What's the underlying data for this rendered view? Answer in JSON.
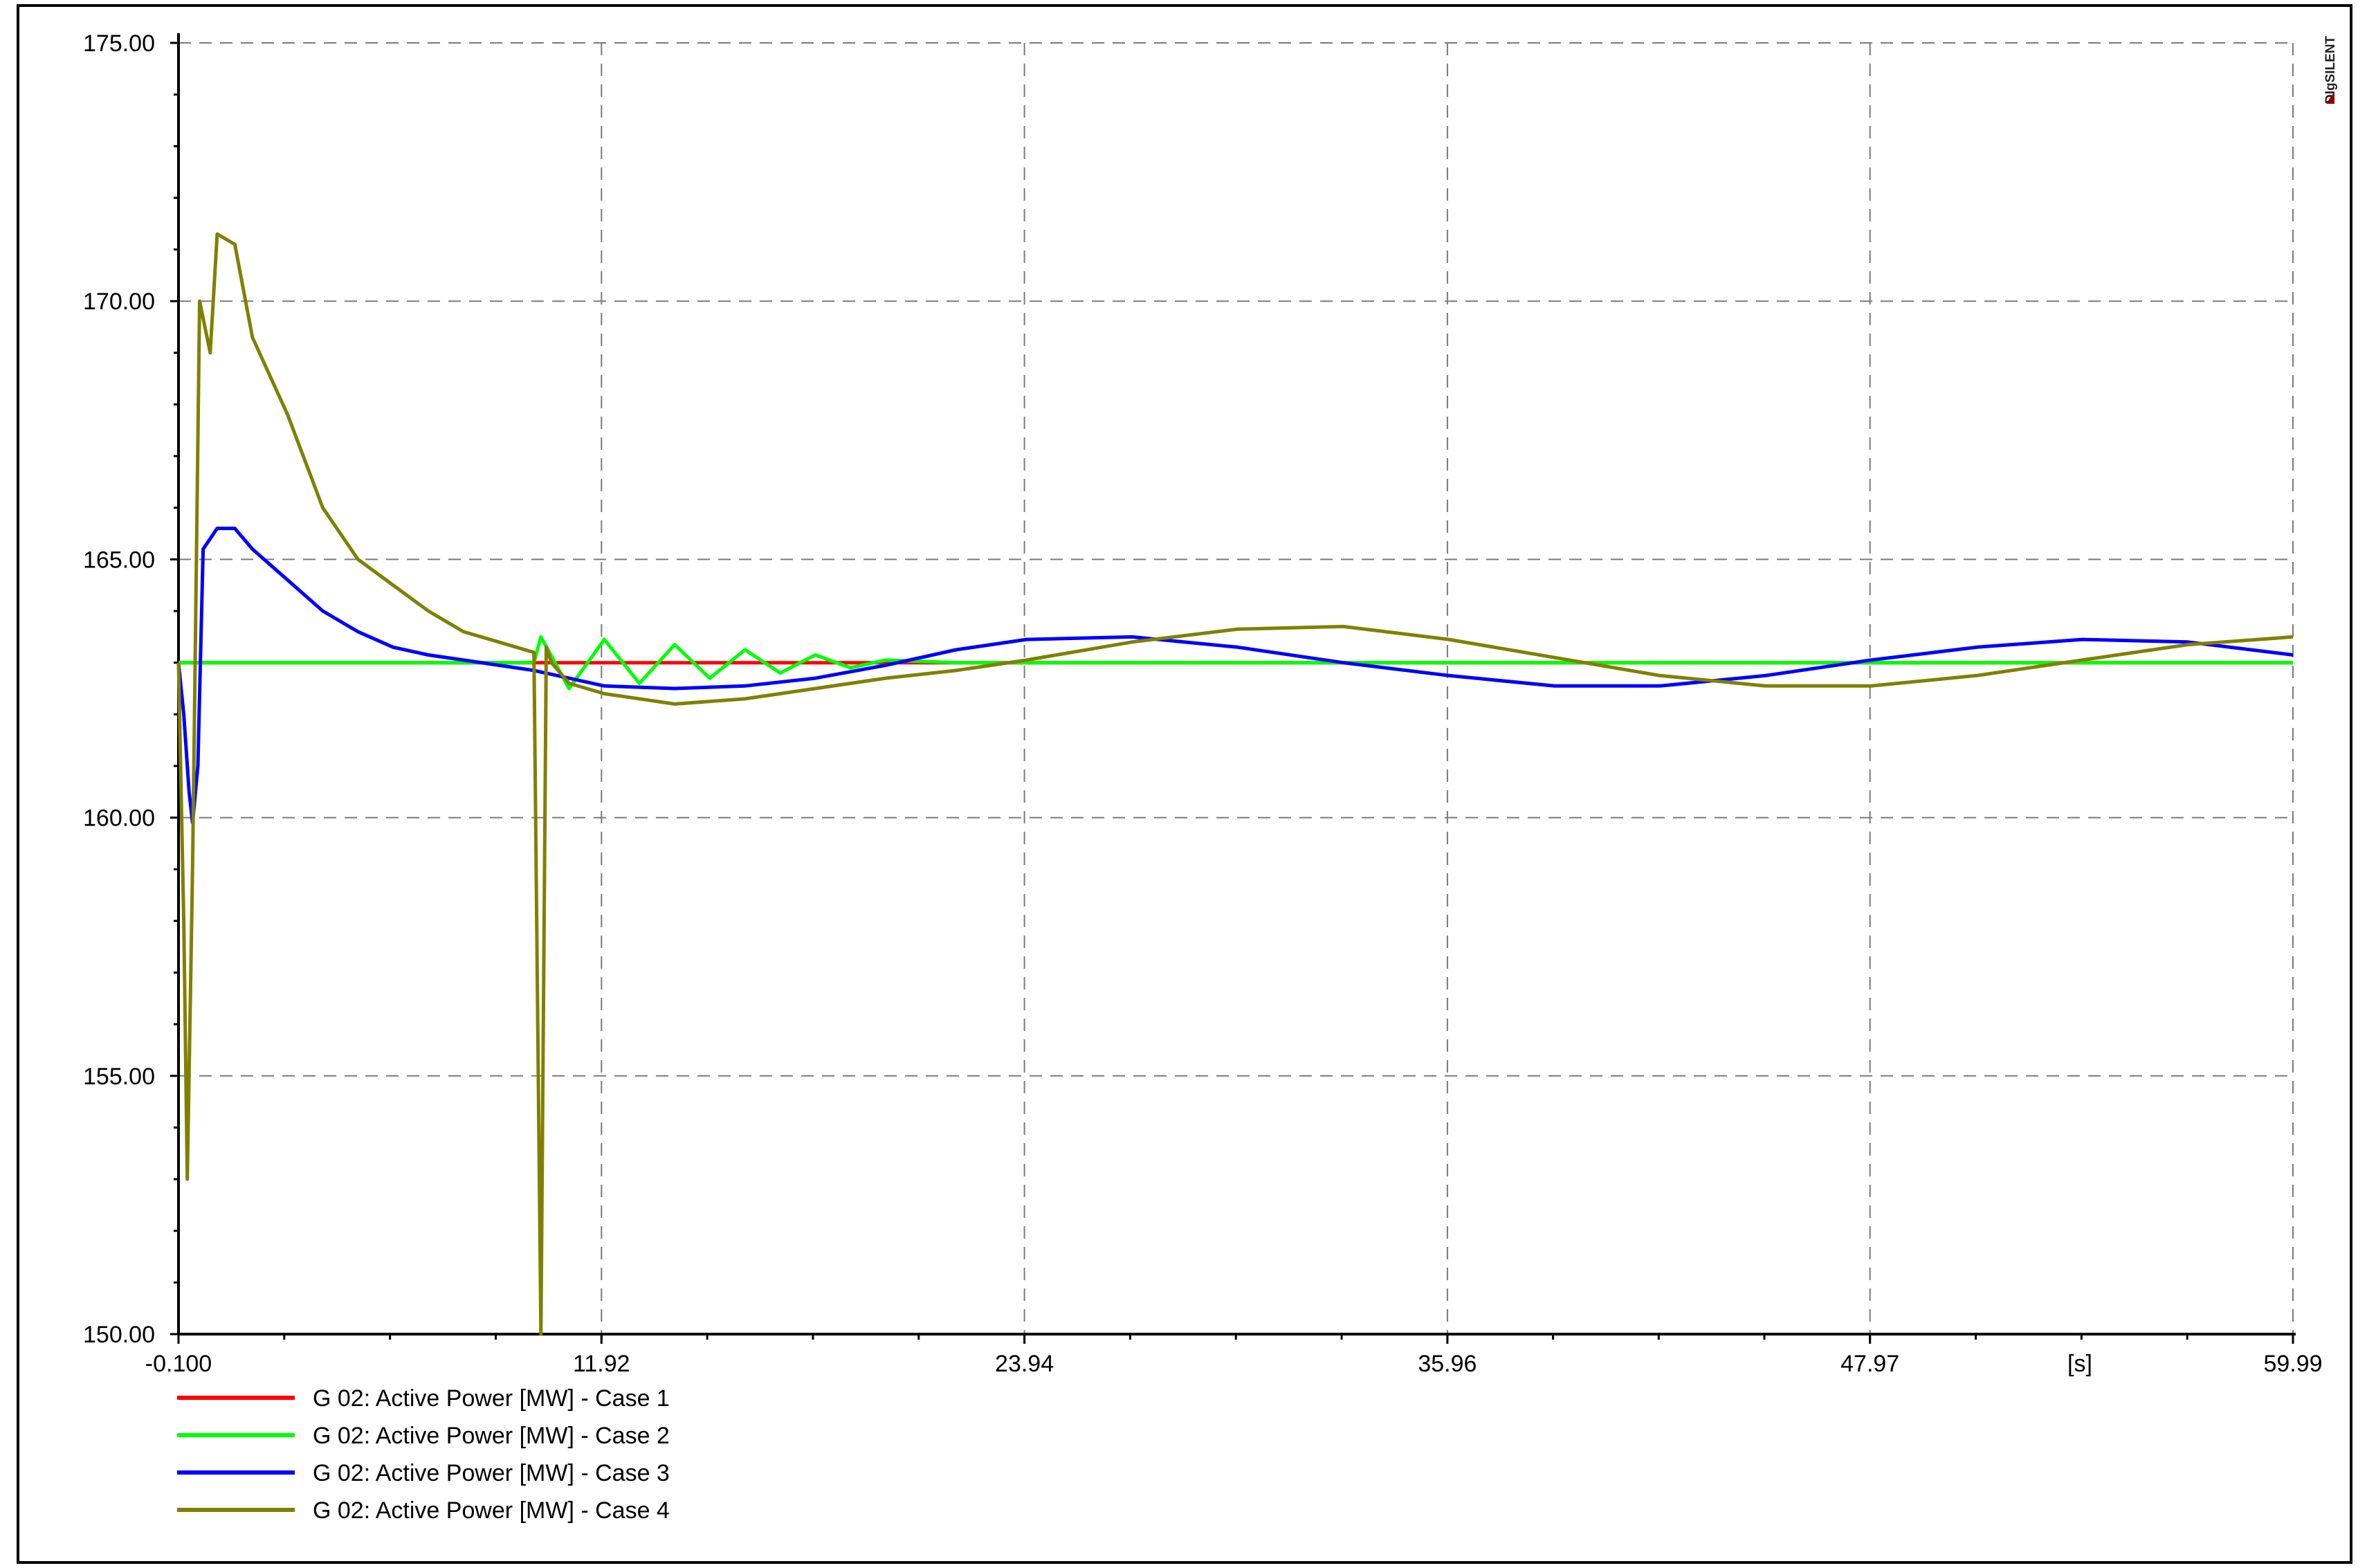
{
  "watermark": "DIgSILENT",
  "chart_data": {
    "type": "line",
    "title": "",
    "xlabel": "",
    "ylabel": "",
    "x_unit_label": "[s]",
    "xlim": [
      -0.1,
      59.99
    ],
    "ylim": [
      150.0,
      175.0
    ],
    "x_tick_labels": [
      "-0.100",
      "11.92",
      "23.94",
      "35.96",
      "47.97",
      "59.99"
    ],
    "x_tick_values": [
      -0.1,
      11.92,
      23.94,
      35.96,
      47.97,
      59.99
    ],
    "y_tick_labels": [
      "150.00",
      "155.00",
      "160.00",
      "165.00",
      "170.00",
      "175.00"
    ],
    "y_tick_values": [
      150,
      155,
      160,
      165,
      170,
      175
    ],
    "grid": true,
    "grid_style": "dashed",
    "legend_position": "bottom-left",
    "series": [
      {
        "name": "G 02: Active Power [MW] - Case 1",
        "color": "#ff0000",
        "x": [
          -0.1,
          59.99
        ],
        "y": [
          163.0,
          163.0
        ]
      },
      {
        "name": "G 02: Active Power [MW] - Case 2",
        "color": "#00ff00",
        "x": [
          -0.1,
          10.0,
          10.2,
          11.0,
          12.0,
          13.0,
          14.0,
          15.0,
          16.0,
          17.0,
          18.0,
          19.0,
          20.0,
          22.0,
          59.99
        ],
        "y": [
          163.0,
          163.0,
          163.5,
          162.5,
          163.45,
          162.6,
          163.35,
          162.7,
          163.25,
          162.8,
          163.15,
          162.9,
          163.05,
          163.0,
          163.0
        ]
      },
      {
        "name": "G 02: Active Power [MW] - Case 3",
        "color": "#0000ff",
        "x": [
          -0.1,
          0.05,
          0.2,
          0.3,
          0.45,
          0.6,
          1.0,
          1.5,
          2.0,
          3.0,
          4.0,
          5.0,
          6.0,
          7.0,
          8.0,
          9.0,
          10.0,
          11.0,
          12.0,
          14.0,
          16.0,
          18.0,
          20.0,
          22.0,
          24.0,
          27.0,
          30.0,
          33.0,
          36.0,
          39.0,
          42.0,
          45.0,
          48.0,
          51.0,
          54.0,
          57.0,
          59.99
        ],
        "y": [
          163.0,
          162.0,
          160.5,
          159.9,
          161.0,
          165.2,
          165.6,
          165.6,
          165.2,
          164.6,
          164.0,
          163.6,
          163.3,
          163.15,
          163.05,
          162.95,
          162.85,
          162.7,
          162.55,
          162.5,
          162.55,
          162.7,
          162.95,
          163.25,
          163.45,
          163.5,
          163.3,
          163.0,
          162.75,
          162.55,
          162.55,
          162.75,
          163.05,
          163.3,
          163.45,
          163.4,
          163.15
        ]
      },
      {
        "name": "G 02: Active Power [MW] - Case 4",
        "color": "#808000",
        "x": [
          -0.1,
          0.05,
          0.15,
          0.3,
          0.5,
          0.8,
          1.0,
          1.5,
          2.0,
          3.0,
          4.0,
          5.0,
          6.0,
          7.0,
          8.0,
          9.0,
          10.0,
          10.2,
          10.35,
          10.5,
          11.0,
          12.0,
          14.0,
          16.0,
          18.0,
          20.0,
          22.0,
          24.0,
          27.0,
          30.0,
          33.0,
          36.0,
          39.0,
          42.0,
          45.0,
          48.0,
          51.0,
          54.0,
          57.0,
          59.99
        ],
        "y": [
          163.0,
          158.0,
          153.0,
          159.0,
          170.0,
          169.0,
          171.3,
          171.1,
          169.3,
          167.8,
          166.0,
          165.0,
          164.5,
          164.0,
          163.6,
          163.4,
          163.2,
          150.0,
          163.3,
          163.0,
          162.6,
          162.4,
          162.2,
          162.3,
          162.5,
          162.7,
          162.85,
          163.05,
          163.4,
          163.65,
          163.7,
          163.45,
          163.1,
          162.75,
          162.55,
          162.55,
          162.75,
          163.05,
          163.35,
          163.5
        ]
      }
    ]
  }
}
